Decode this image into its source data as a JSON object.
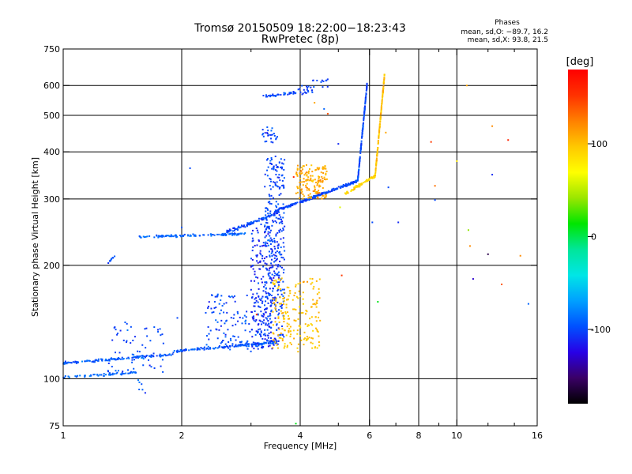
{
  "chart_data": {
    "type": "scatter",
    "title": "Tromsø 20150509 18:22:00−18:23:43",
    "subtitle": "RwPretec (8p)",
    "xlabel": "Frequency [MHz]",
    "ylabel": "Stationary phase Virtual Height [km]",
    "x_scale": "log",
    "y_scale": "log",
    "xlim": [
      1,
      16
    ],
    "ylim": [
      75,
      750
    ],
    "x_ticks": [
      1,
      2,
      4,
      6,
      8,
      10,
      16
    ],
    "x_tick_labels": [
      "1",
      "2",
      "4",
      "6",
      "8",
      "10",
      "16"
    ],
    "x_minor_ticks": [
      3,
      5,
      7,
      9,
      12,
      14
    ],
    "y_ticks": [
      75,
      100,
      200,
      300,
      400,
      500,
      600,
      750
    ],
    "y_tick_labels": [
      "75",
      "100",
      "200",
      "300",
      "400",
      "500",
      "600",
      "750"
    ],
    "grid": true,
    "grid_x": [
      2,
      4,
      6,
      8,
      10
    ],
    "grid_y": [
      100,
      200,
      300,
      400,
      500,
      600
    ],
    "phases": {
      "title": "Phases",
      "line_o": "mean, sd,O: −89.7, 16.2",
      "line_x": "mean, sd,X:  93.8, 21.5"
    },
    "colorbar": {
      "label": "[deg]",
      "ticks": [
        100,
        0,
        -100
      ],
      "range": [
        -180,
        180
      ],
      "colors": [
        "#000000",
        "#3a0066",
        "#2800e6",
        "#0050ff",
        "#00a0ff",
        "#00e6e6",
        "#00e69a",
        "#00e600",
        "#9ae600",
        "#ffff00",
        "#ffc800",
        "#ff8000",
        "#ff3200",
        "#ff0000"
      ]
    },
    "series": [
      {
        "type": "trace",
        "xmin": 1.0,
        "xmax": 1.9,
        "y0": 110,
        "y1": 116,
        "n": 120,
        "scatter": 0.012,
        "phase": -95
      },
      {
        "type": "trace",
        "xmin": 1.0,
        "xmax": 1.55,
        "y0": 101,
        "y1": 104,
        "n": 60,
        "scatter": 0.01,
        "phase": -90
      },
      {
        "type": "cluster",
        "x": [
          1.3,
          1.8
        ],
        "y": [
          104,
          142
        ],
        "n": 60,
        "phase": -100
      },
      {
        "type": "cluster",
        "x": [
          1.55,
          1.62
        ],
        "y": [
          91,
          101
        ],
        "n": 6,
        "phase": -95
      },
      {
        "type": "trace",
        "xmin": 1.9,
        "xmax": 3.5,
        "y0": 118,
        "y1": 125,
        "n": 150,
        "scatter": 0.012,
        "phase": -95
      },
      {
        "type": "cluster",
        "x": [
          2.3,
          3.3
        ],
        "y": [
          118,
          168
        ],
        "n": 150,
        "phase": -100
      },
      {
        "type": "cluster",
        "x": [
          3.0,
          3.55
        ],
        "y": [
          120,
          260
        ],
        "n": 200,
        "phase": -110
      },
      {
        "type": "cluster",
        "x": [
          3.25,
          3.65
        ],
        "y": [
          125,
          390
        ],
        "n": 300,
        "phase": -100
      },
      {
        "type": "cluster",
        "x": [
          3.4,
          4.5
        ],
        "y": [
          120,
          185
        ],
        "n": 200,
        "phase": 100
      },
      {
        "type": "trace",
        "xmin": 1.3,
        "xmax": 1.36,
        "y0": 203,
        "y1": 213,
        "n": 10,
        "scatter": 0.01,
        "phase": -100
      },
      {
        "type": "trace",
        "xmin": 1.55,
        "xmax": 2.9,
        "y0": 238,
        "y1": 242,
        "n": 120,
        "scatter": 0.01,
        "phase": -90
      },
      {
        "type": "trace",
        "xmin": 2.6,
        "xmax": 3.5,
        "y0": 245,
        "y1": 275,
        "n": 100,
        "scatter": 0.015,
        "phase": -100
      },
      {
        "type": "trace",
        "xmin": 3.5,
        "xmax": 5.6,
        "y0": 280,
        "y1": 335,
        "n": 220,
        "scatter": 0.012,
        "phase": -100
      },
      {
        "type": "trace",
        "xmin": 5.6,
        "xmax": 5.92,
        "y0": 335,
        "y1": 610,
        "n": 130,
        "scatter": 0.012,
        "phase": -100
      },
      {
        "type": "cluster",
        "x": [
          3.9,
          4.7
        ],
        "y": [
          300,
          370
        ],
        "n": 150,
        "phase": 110
      },
      {
        "type": "trace",
        "xmin": 5.2,
        "xmax": 6.2,
        "y0": 310,
        "y1": 345,
        "n": 80,
        "scatter": 0.012,
        "phase": 90
      },
      {
        "type": "trace",
        "xmin": 6.2,
        "xmax": 6.55,
        "y0": 345,
        "y1": 640,
        "n": 130,
        "scatter": 0.012,
        "phase": 100
      },
      {
        "type": "cluster",
        "x": [
          3.2,
          3.5
        ],
        "y": [
          420,
          470
        ],
        "n": 25,
        "phase": -100
      },
      {
        "type": "trace",
        "xmin": 3.2,
        "xmax": 3.9,
        "y0": 560,
        "y1": 575,
        "n": 40,
        "scatter": 0.01,
        "phase": -100
      },
      {
        "type": "cluster",
        "x": [
          3.9,
          4.3
        ],
        "y": [
          568,
          600
        ],
        "n": 20,
        "phase": -100
      },
      {
        "type": "cluster",
        "x": [
          4.3,
          4.7
        ],
        "y": [
          592,
          625
        ],
        "n": 12,
        "phase": -100
      }
    ],
    "noise": [
      [
        1.3,
        105,
        -100
      ],
      [
        1.5,
        116,
        -90
      ],
      [
        1.6,
        113,
        -80
      ],
      [
        1.45,
        126,
        -100
      ],
      [
        1.95,
        145,
        -100
      ],
      [
        2.1,
        362,
        -100
      ],
      [
        2.0,
        252,
        -95
      ],
      [
        2.5,
        149,
        -90
      ],
      [
        2.9,
        142,
        -80
      ],
      [
        3.9,
        76,
        10
      ],
      [
        4.4,
        155,
        100
      ],
      [
        4.7,
        505,
        140
      ],
      [
        4.6,
        520,
        -90
      ],
      [
        4.35,
        540,
        110
      ],
      [
        5.0,
        420,
        -110
      ],
      [
        5.05,
        285,
        60
      ],
      [
        5.1,
        188,
        150
      ],
      [
        6.1,
        260,
        -100
      ],
      [
        6.6,
        450,
        110
      ],
      [
        6.3,
        160,
        10
      ],
      [
        6.7,
        322,
        -100
      ],
      [
        7.1,
        260,
        -110
      ],
      [
        8.6,
        425,
        150
      ],
      [
        8.8,
        325,
        130
      ],
      [
        8.8,
        298,
        -100
      ],
      [
        10.0,
        378,
        80
      ],
      [
        10.6,
        600,
        110
      ],
      [
        10.7,
        248,
        40
      ],
      [
        10.8,
        225,
        120
      ],
      [
        11.0,
        184,
        -130
      ],
      [
        12.0,
        214,
        -160
      ],
      [
        12.3,
        348,
        -110
      ],
      [
        12.3,
        468,
        120
      ],
      [
        13.0,
        178,
        140
      ],
      [
        13.5,
        430,
        160
      ],
      [
        14.5,
        212,
        120
      ],
      [
        15.2,
        158,
        -90
      ],
      [
        3.95,
        118,
        100
      ],
      [
        3.85,
        343,
        160
      ],
      [
        3.1,
        148,
        160
      ]
    ]
  }
}
